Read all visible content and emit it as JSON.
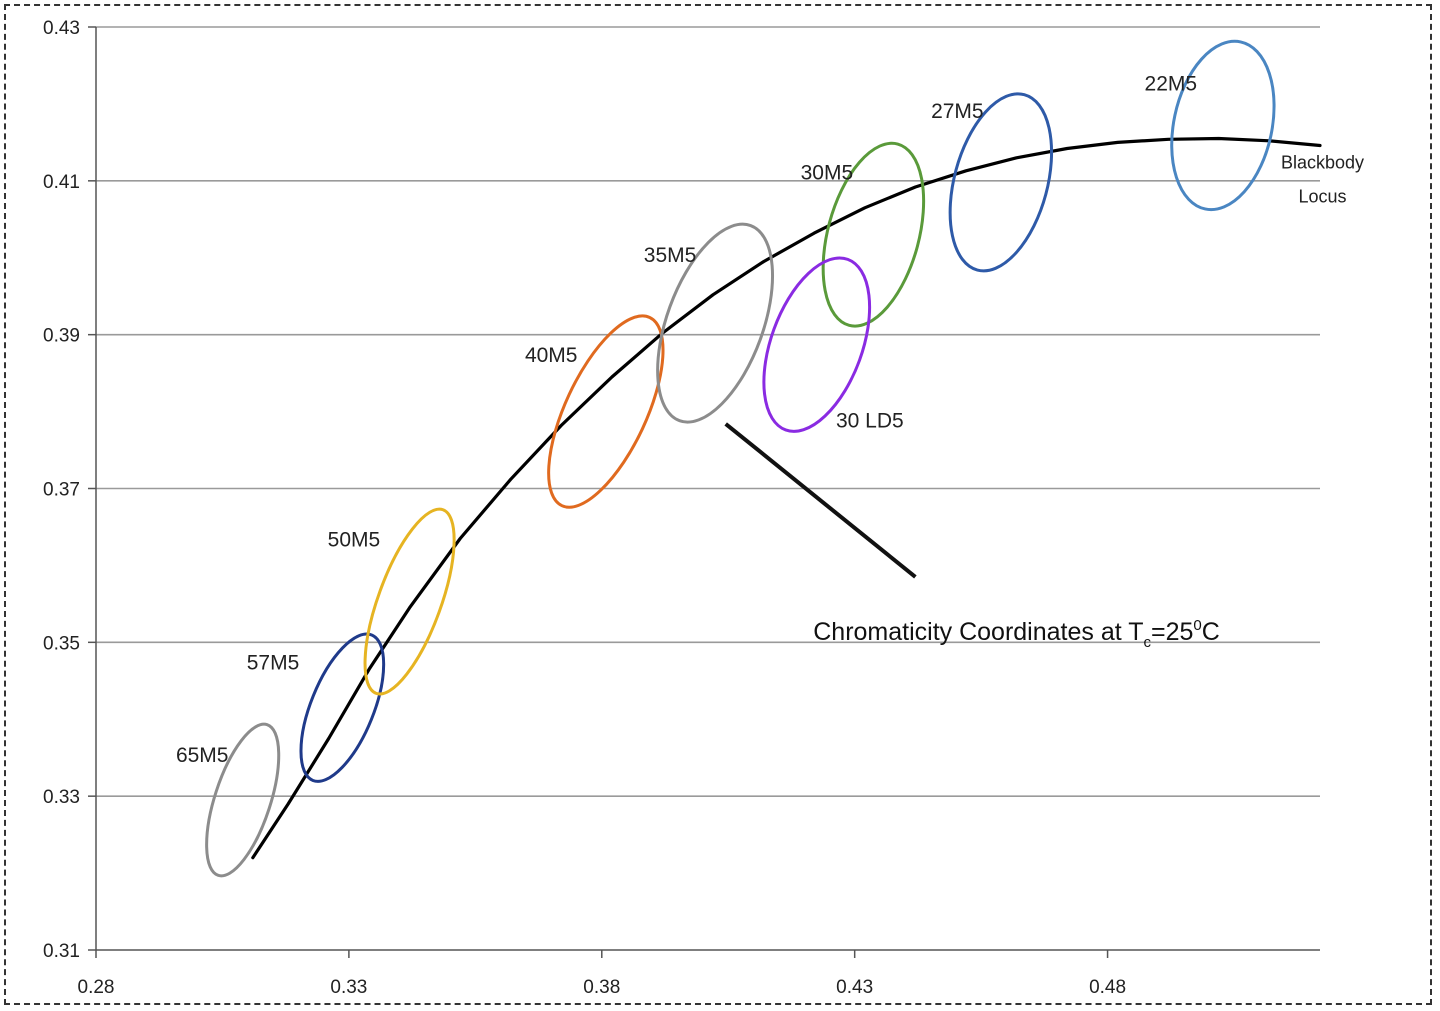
{
  "chart_data": {
    "type": "scatter",
    "x_ticks": [
      "0.28",
      "0.33",
      "0.38",
      "0.43",
      "0.48"
    ],
    "y_ticks": [
      "0.31",
      "0.33",
      "0.35",
      "0.37",
      "0.39",
      "0.41",
      "0.43"
    ],
    "xlim": [
      0.28,
      0.522
    ],
    "ylim": [
      0.31,
      0.43
    ],
    "grid": "horizontal",
    "xlabel": "",
    "ylabel": "",
    "ellipses": [
      {
        "name": "65M5",
        "cx": 0.309,
        "cy": 0.3295,
        "rx": 0.0055,
        "ry": 0.0103,
        "angle": 18,
        "color": "#8c8c8c",
        "label_x": 0.301,
        "label_y": 0.3355
      },
      {
        "name": "57M5",
        "cx": 0.3287,
        "cy": 0.3415,
        "rx": 0.0062,
        "ry": 0.0102,
        "angle": 22,
        "color": "#1f3a8a",
        "label_x": 0.315,
        "label_y": 0.3475
      },
      {
        "name": "50M5",
        "cx": 0.342,
        "cy": 0.3553,
        "rx": 0.0062,
        "ry": 0.0127,
        "angle": 20,
        "color": "#e6b422",
        "label_x": 0.331,
        "label_y": 0.3635
      },
      {
        "name": "40M5",
        "cx": 0.3808,
        "cy": 0.38,
        "rx": 0.008,
        "ry": 0.0135,
        "angle": 25,
        "color": "#e06a1f",
        "label_x": 0.37,
        "label_y": 0.3875
      },
      {
        "name": "35M5",
        "cx": 0.4024,
        "cy": 0.3915,
        "rx": 0.0095,
        "ry": 0.0135,
        "angle": 20,
        "color": "#8c8c8c",
        "label_x": 0.3935,
        "label_y": 0.4005
      },
      {
        "name": "30M5",
        "cx": 0.4337,
        "cy": 0.403,
        "rx": 0.009,
        "ry": 0.0122,
        "angle": 15,
        "color": "#5a9a3a",
        "label_x": 0.4245,
        "label_y": 0.4112
      },
      {
        "name": "30 LD5",
        "cx": 0.4225,
        "cy": 0.3887,
        "rx": 0.009,
        "ry": 0.0118,
        "angle": 20,
        "color": "#8a2be2",
        "label_x": 0.433,
        "label_y": 0.379
      },
      {
        "name": "27M5",
        "cx": 0.4589,
        "cy": 0.4098,
        "rx": 0.0092,
        "ry": 0.0118,
        "angle": 15,
        "color": "#2e5aa8",
        "label_x": 0.4503,
        "label_y": 0.4192
      },
      {
        "name": "22M5",
        "cx": 0.5028,
        "cy": 0.4172,
        "rx": 0.0097,
        "ry": 0.0111,
        "angle": 12,
        "color": "#4a86c2",
        "label_x": 0.4925,
        "label_y": 0.4228
      }
    ],
    "locus": {
      "name": "Blackbody Locus",
      "label_line1": "Blackbody",
      "label_line2": "Locus",
      "label_x": 0.513,
      "label_y": 0.409,
      "points": [
        [
          0.311,
          0.322
        ],
        [
          0.318,
          0.329
        ],
        [
          0.326,
          0.3375
        ],
        [
          0.334,
          0.3465
        ],
        [
          0.342,
          0.3545
        ],
        [
          0.352,
          0.3635
        ],
        [
          0.362,
          0.3712
        ],
        [
          0.372,
          0.3782
        ],
        [
          0.382,
          0.3845
        ],
        [
          0.392,
          0.3902
        ],
        [
          0.402,
          0.3952
        ],
        [
          0.412,
          0.3995
        ],
        [
          0.422,
          0.4032
        ],
        [
          0.432,
          0.4065
        ],
        [
          0.442,
          0.4092
        ],
        [
          0.452,
          0.4113
        ],
        [
          0.462,
          0.413
        ],
        [
          0.472,
          0.4142
        ],
        [
          0.482,
          0.415
        ],
        [
          0.492,
          0.4154
        ],
        [
          0.502,
          0.4155
        ],
        [
          0.512,
          0.4152
        ],
        [
          0.522,
          0.4146
        ]
      ],
      "color": "#000000"
    },
    "annotation": {
      "text_main": "Chromaticity Coordinates at T",
      "text_sub": "c",
      "text_tail": "=25",
      "text_sup": "0",
      "text_end": "C",
      "anchor_x": 0.4045,
      "anchor_y": 0.3784,
      "elbow_x": 0.442,
      "elbow_y": 0.3585,
      "text_x": 0.462,
      "text_y": 0.3515
    }
  }
}
